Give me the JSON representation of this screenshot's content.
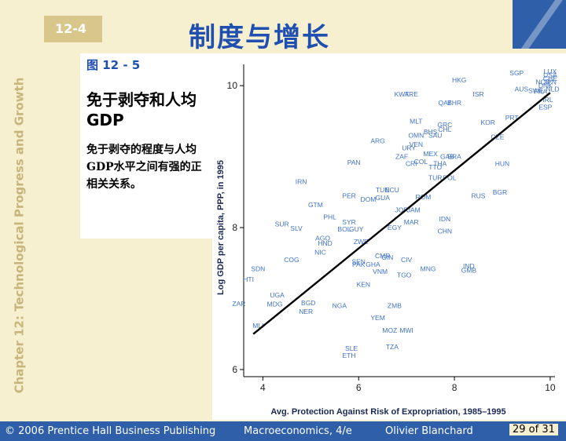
{
  "slide": {
    "section_number": "12-4",
    "title": "制度与增长",
    "sidebar_text": "Chapter 12: Technological Progress and Growth",
    "figure_label": "图 12 - 5",
    "heading": "免于剥夺和人均GDP",
    "description": "免于剥夺的程度与人均GDP水平之间有强的正相关关系。",
    "colors": {
      "accent_blue": "#1f4fb0",
      "footer_blue": "#2f5fa8",
      "background": "#f6efd0",
      "tan": "#d8c68a",
      "point_blue": "#3f72c8"
    }
  },
  "footer": {
    "copyright": "© 2006 Prentice Hall Business Publishing",
    "book": "Macroeconomics, 4/e",
    "author": "Olivier Blanchard",
    "page": "29 of 31"
  },
  "chart_data": {
    "type": "scatter",
    "xlabel": "Avg. Protection Against Risk of Expropriation, 1985–1995",
    "ylabel": "Log GDP per capita, PPP, in 1995",
    "xlim": [
      3.6,
      10.1
    ],
    "ylim": [
      5.9,
      10.3
    ],
    "xticks": [
      4,
      6,
      8,
      10
    ],
    "yticks": [
      6,
      8,
      10
    ],
    "grid": false,
    "fit_line": {
      "x1": 3.8,
      "y1": 6.5,
      "x2": 10.0,
      "y2": 9.9
    },
    "points": [
      {
        "label": "LUX",
        "x": 10.0,
        "y": 10.2
      },
      {
        "label": "USA",
        "x": 10.0,
        "y": 10.15
      },
      {
        "label": "CHE",
        "x": 10.0,
        "y": 10.1
      },
      {
        "label": "JPN",
        "x": 10.0,
        "y": 10.05
      },
      {
        "label": "SGP",
        "x": 9.3,
        "y": 10.18
      },
      {
        "label": "NOR",
        "x": 9.85,
        "y": 10.05
      },
      {
        "label": "DNK",
        "x": 9.9,
        "y": 10.0
      },
      {
        "label": "AUS",
        "x": 9.4,
        "y": 9.95
      },
      {
        "label": "SWE",
        "x": 9.7,
        "y": 9.93
      },
      {
        "label": "NLD",
        "x": 10.05,
        "y": 9.95
      },
      {
        "label": "FRA",
        "x": 9.8,
        "y": 9.92
      },
      {
        "label": "IRL",
        "x": 9.95,
        "y": 9.8
      },
      {
        "label": "ESP",
        "x": 9.9,
        "y": 9.7
      },
      {
        "label": "HKG",
        "x": 8.1,
        "y": 10.08
      },
      {
        "label": "ISR",
        "x": 8.5,
        "y": 9.88
      },
      {
        "label": "KWT",
        "x": 6.9,
        "y": 9.88
      },
      {
        "label": "ARE",
        "x": 7.1,
        "y": 9.88
      },
      {
        "label": "QAT",
        "x": 7.8,
        "y": 9.76
      },
      {
        "label": "BHR",
        "x": 8.0,
        "y": 9.76
      },
      {
        "label": "PRT",
        "x": 9.2,
        "y": 9.55
      },
      {
        "label": "KOR",
        "x": 8.7,
        "y": 9.48
      },
      {
        "label": "MLT",
        "x": 7.2,
        "y": 9.5
      },
      {
        "label": "GRC",
        "x": 7.8,
        "y": 9.45
      },
      {
        "label": "CHL",
        "x": 7.8,
        "y": 9.38
      },
      {
        "label": "BHS",
        "x": 7.5,
        "y": 9.35
      },
      {
        "label": "SAU",
        "x": 7.6,
        "y": 9.3
      },
      {
        "label": "OMN",
        "x": 7.2,
        "y": 9.3
      },
      {
        "label": "CZE",
        "x": 8.9,
        "y": 9.28
      },
      {
        "label": "ARG",
        "x": 6.4,
        "y": 9.22
      },
      {
        "label": "VEN",
        "x": 7.2,
        "y": 9.17
      },
      {
        "label": "URY",
        "x": 7.05,
        "y": 9.12
      },
      {
        "label": "MEX",
        "x": 7.5,
        "y": 9.04
      },
      {
        "label": "GAB",
        "x": 7.85,
        "y": 9.0
      },
      {
        "label": "ZAF",
        "x": 6.9,
        "y": 9.0
      },
      {
        "label": "BRA",
        "x": 8.0,
        "y": 9.0
      },
      {
        "label": "COL",
        "x": 7.3,
        "y": 8.93
      },
      {
        "label": "CRI",
        "x": 7.1,
        "y": 8.9
      },
      {
        "label": "THA",
        "x": 7.7,
        "y": 8.9
      },
      {
        "label": "TTO",
        "x": 7.6,
        "y": 8.85
      },
      {
        "label": "PAN",
        "x": 5.9,
        "y": 8.92
      },
      {
        "label": "HUN",
        "x": 9.0,
        "y": 8.9
      },
      {
        "label": "TUR",
        "x": 7.6,
        "y": 8.7
      },
      {
        "label": "POL",
        "x": 7.9,
        "y": 8.7
      },
      {
        "label": "IRN",
        "x": 4.8,
        "y": 8.65
      },
      {
        "label": "TUN",
        "x": 6.5,
        "y": 8.53
      },
      {
        "label": "ECU",
        "x": 6.7,
        "y": 8.53
      },
      {
        "label": "BGR",
        "x": 8.95,
        "y": 8.5
      },
      {
        "label": "PER",
        "x": 5.8,
        "y": 8.45
      },
      {
        "label": "DOM",
        "x": 6.2,
        "y": 8.4
      },
      {
        "label": "GUA",
        "x": 6.5,
        "y": 8.42
      },
      {
        "label": "ROM",
        "x": 7.35,
        "y": 8.43
      },
      {
        "label": "RUS",
        "x": 8.5,
        "y": 8.45
      },
      {
        "label": "GTM",
        "x": 5.1,
        "y": 8.32
      },
      {
        "label": "JOR",
        "x": 6.9,
        "y": 8.25
      },
      {
        "label": "JAM",
        "x": 7.15,
        "y": 8.25
      },
      {
        "label": "PHL",
        "x": 5.4,
        "y": 8.15
      },
      {
        "label": "SYR",
        "x": 5.8,
        "y": 8.08
      },
      {
        "label": "IDN",
        "x": 7.8,
        "y": 8.12
      },
      {
        "label": "MAR",
        "x": 7.1,
        "y": 8.08
      },
      {
        "label": "SUR",
        "x": 4.4,
        "y": 8.05
      },
      {
        "label": "BOL",
        "x": 5.7,
        "y": 7.98
      },
      {
        "label": "GUY",
        "x": 5.95,
        "y": 7.98
      },
      {
        "label": "SLV",
        "x": 4.7,
        "y": 7.99
      },
      {
        "label": "EGY",
        "x": 6.75,
        "y": 8.0
      },
      {
        "label": "CHN",
        "x": 7.8,
        "y": 7.95
      },
      {
        "label": "AGO",
        "x": 5.25,
        "y": 7.85
      },
      {
        "label": "HND",
        "x": 5.3,
        "y": 7.78
      },
      {
        "label": "ZWE",
        "x": 6.05,
        "y": 7.8
      },
      {
        "label": "NIC",
        "x": 5.2,
        "y": 7.65
      },
      {
        "label": "CMR",
        "x": 6.5,
        "y": 7.6
      },
      {
        "label": "GIN",
        "x": 6.6,
        "y": 7.58
      },
      {
        "label": "COG",
        "x": 4.6,
        "y": 7.55
      },
      {
        "label": "SEN",
        "x": 6.0,
        "y": 7.52
      },
      {
        "label": "CIV",
        "x": 7.0,
        "y": 7.55
      },
      {
        "label": "PAK",
        "x": 6.0,
        "y": 7.48
      },
      {
        "label": "GHA",
        "x": 6.3,
        "y": 7.48
      },
      {
        "label": "VNM",
        "x": 6.45,
        "y": 7.38
      },
      {
        "label": "MNG",
        "x": 7.45,
        "y": 7.42
      },
      {
        "label": "IND",
        "x": 8.3,
        "y": 7.46
      },
      {
        "label": "GMB",
        "x": 8.3,
        "y": 7.4
      },
      {
        "label": "SDN",
        "x": 3.9,
        "y": 7.42
      },
      {
        "label": "TGO",
        "x": 6.95,
        "y": 7.33
      },
      {
        "label": "HTI",
        "x": 3.7,
        "y": 7.27
      },
      {
        "label": "KEN",
        "x": 6.1,
        "y": 7.2
      },
      {
        "label": "UGA",
        "x": 4.3,
        "y": 7.05
      },
      {
        "label": "ZAR",
        "x": 3.5,
        "y": 6.93
      },
      {
        "label": "MDG",
        "x": 4.25,
        "y": 6.92
      },
      {
        "label": "BGD",
        "x": 4.95,
        "y": 6.94
      },
      {
        "label": "NGA",
        "x": 5.6,
        "y": 6.9
      },
      {
        "label": "ZMB",
        "x": 6.75,
        "y": 6.9
      },
      {
        "label": "NER",
        "x": 4.9,
        "y": 6.82
      },
      {
        "label": "YEM",
        "x": 6.4,
        "y": 6.73
      },
      {
        "label": "MLI",
        "x": 3.9,
        "y": 6.62
      },
      {
        "label": "MOZ",
        "x": 6.65,
        "y": 6.55
      },
      {
        "label": "MWI",
        "x": 7.0,
        "y": 6.55
      },
      {
        "label": "TZA",
        "x": 6.7,
        "y": 6.32
      },
      {
        "label": "SLE",
        "x": 5.85,
        "y": 6.3
      },
      {
        "label": "ETH",
        "x": 5.8,
        "y": 6.2
      }
    ]
  }
}
